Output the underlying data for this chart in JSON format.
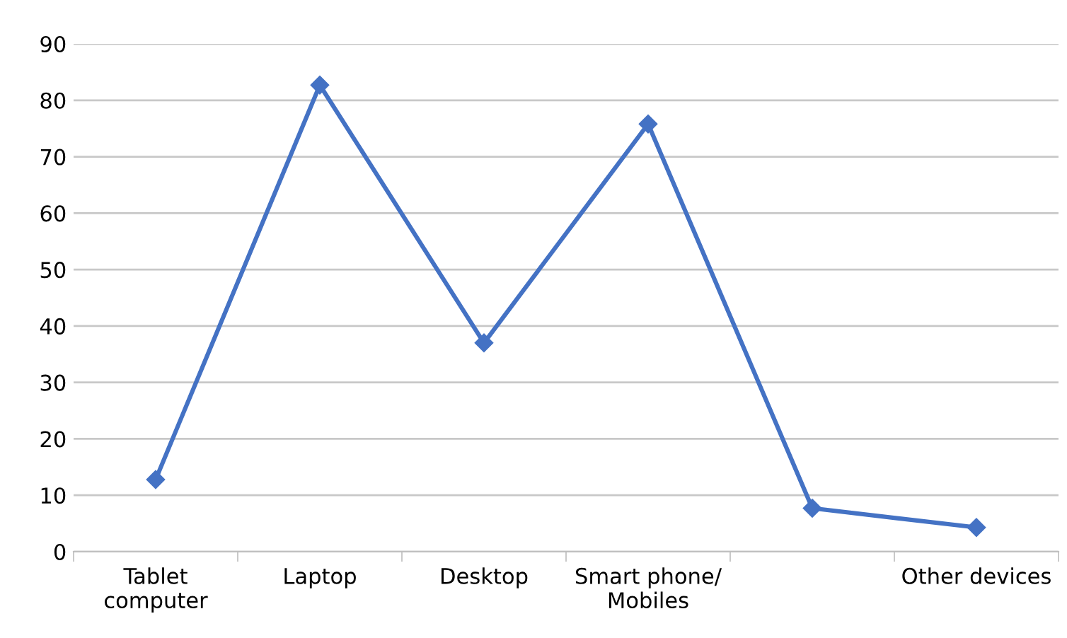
{
  "chart_data": {
    "type": "line",
    "categories": [
      "Tablet\ncomputer",
      "Laptop",
      "Desktop",
      "Smart phone/\nMobiles",
      null,
      "Other devices"
    ],
    "series": [
      {
        "color": "#4472c4",
        "values": [
          12.8,
          82.7,
          37,
          75.8,
          7.7,
          4.3
        ]
      }
    ],
    "ylim": [
      0,
      90
    ],
    "yticks": [
      0,
      10,
      20,
      30,
      40,
      50,
      60,
      70,
      80,
      90
    ],
    "grid": "y",
    "marker": "diamond",
    "line_style": "solid",
    "legend": false
  }
}
